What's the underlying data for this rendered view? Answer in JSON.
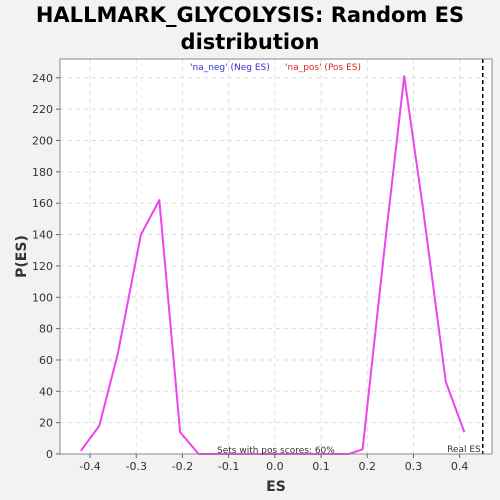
{
  "chart_data": {
    "type": "line",
    "title_lines": [
      "HALLMARK_GLYCOLYSIS: Random ES",
      "distribution"
    ],
    "xlabel": "ES",
    "ylabel": "P(ES)",
    "xlim": [
      -0.465,
      0.47
    ],
    "ylim": [
      0,
      252
    ],
    "x_ticks": [
      -0.4,
      -0.3,
      -0.2,
      -0.1,
      0.0,
      0.1,
      0.2,
      0.3,
      0.4
    ],
    "x_tick_labels": [
      "-0.4",
      "-0.3",
      "-0.2",
      "-0.1",
      "0.0",
      "0.1",
      "0.2",
      "0.3",
      "0.4"
    ],
    "y_ticks": [
      0,
      20,
      40,
      60,
      80,
      100,
      120,
      140,
      160,
      180,
      200,
      220,
      240
    ],
    "y_tick_labels": [
      "0",
      "20",
      "40",
      "60",
      "80",
      "100",
      "120",
      "140",
      "160",
      "180",
      "200",
      "220",
      "240"
    ],
    "grid": true,
    "legend": [
      {
        "label": "'na_neg' (Neg ES)",
        "color": "#3333cc"
      },
      {
        "label": "'na_pos' (Pos ES)",
        "color": "#e02020"
      }
    ],
    "series": [
      {
        "color": "#ee44ee",
        "x": [
          -0.42,
          -0.38,
          -0.34,
          -0.29,
          -0.25,
          -0.205,
          -0.165,
          0.16,
          0.19,
          0.24,
          0.28,
          0.32,
          0.37,
          0.41
        ],
        "y": [
          2,
          18,
          64,
          140,
          162,
          14,
          0,
          0,
          3,
          138,
          241,
          158,
          46,
          14
        ]
      }
    ],
    "real_es": {
      "x": 0.45,
      "label": "Real ES"
    },
    "annotation": "Sets with pos scores: 60%"
  }
}
